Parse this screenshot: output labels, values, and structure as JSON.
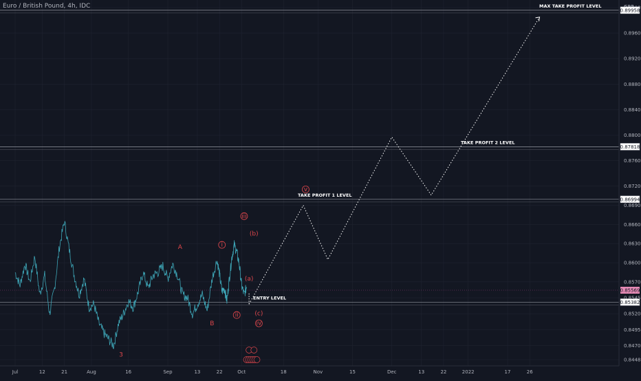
{
  "symbol": {
    "title": "Euro / British Pound, 4h, IDC"
  },
  "currency": "GBP",
  "chart_data": {
    "type": "line",
    "y_ticks": [
      0.8448,
      0.847,
      0.8495,
      0.852,
      0.8545,
      0.857,
      0.86,
      0.863,
      0.866,
      0.869,
      0.872,
      0.876,
      0.88,
      0.884,
      0.888,
      0.892,
      0.896,
      0.9
    ],
    "y_tick_labels": [
      "0.84480",
      "0.84700",
      "0.84950",
      "0.85200",
      "0.85450",
      "0.85700",
      "0.86000",
      "0.86300",
      "0.86600",
      "0.86900",
      "0.87200",
      "0.87600",
      "0.88000",
      "0.88400",
      "0.88800",
      "0.89200",
      "0.89600",
      "0.90000"
    ],
    "x_ticks": [
      {
        "label": "Jul",
        "day": 0
      },
      {
        "label": "12",
        "day": 11
      },
      {
        "label": "21",
        "day": 20
      },
      {
        "label": "Aug",
        "day": 31
      },
      {
        "label": "16",
        "day": 46
      },
      {
        "label": "Sep",
        "day": 62
      },
      {
        "label": "13",
        "day": 74
      },
      {
        "label": "22",
        "day": 83
      },
      {
        "label": "Oct",
        "day": 92
      },
      {
        "label": "18",
        "day": 109
      },
      {
        "label": "Nov",
        "day": 123
      },
      {
        "label": "15",
        "day": 137
      },
      {
        "label": "Dec",
        "day": 153
      },
      {
        "label": "13",
        "day": 165
      },
      {
        "label": "22",
        "day": 174
      },
      {
        "label": "2022",
        "day": 184
      },
      {
        "label": "17",
        "day": 200
      },
      {
        "label": "26",
        "day": 209
      }
    ],
    "series_price": [
      [
        0,
        0.8585
      ],
      [
        2,
        0.8565
      ],
      [
        4,
        0.8598
      ],
      [
        6,
        0.857
      ],
      [
        8,
        0.861
      ],
      [
        10,
        0.855
      ],
      [
        12,
        0.858
      ],
      [
        14,
        0.852
      ],
      [
        16,
        0.856
      ],
      [
        18,
        0.8625
      ],
      [
        20,
        0.8665
      ],
      [
        22,
        0.862
      ],
      [
        24,
        0.858
      ],
      [
        26,
        0.855
      ],
      [
        28,
        0.8575
      ],
      [
        30,
        0.853
      ],
      [
        32,
        0.8535
      ],
      [
        34,
        0.8505
      ],
      [
        36,
        0.849
      ],
      [
        38,
        0.848
      ],
      [
        40,
        0.847
      ],
      [
        42,
        0.8505
      ],
      [
        44,
        0.852
      ],
      [
        46,
        0.854
      ],
      [
        48,
        0.853
      ],
      [
        50,
        0.8555
      ],
      [
        52,
        0.8585
      ],
      [
        54,
        0.856
      ],
      [
        56,
        0.858
      ],
      [
        58,
        0.8585
      ],
      [
        60,
        0.8595
      ],
      [
        62,
        0.8575
      ],
      [
        64,
        0.8598
      ],
      [
        66,
        0.858
      ],
      [
        68,
        0.855
      ],
      [
        70,
        0.8545
      ],
      [
        72,
        0.852
      ],
      [
        74,
        0.8535
      ],
      [
        76,
        0.855
      ],
      [
        78,
        0.8525
      ],
      [
        80,
        0.8575
      ],
      [
        82,
        0.8605
      ],
      [
        83,
        0.8582
      ],
      [
        84,
        0.8555
      ],
      [
        85,
        0.856
      ],
      [
        86,
        0.854
      ],
      [
        87,
        0.8575
      ],
      [
        88,
        0.8608
      ],
      [
        89,
        0.8628
      ],
      [
        90,
        0.8617
      ],
      [
        91,
        0.8598
      ],
      [
        92,
        0.8564
      ],
      [
        93,
        0.855
      ],
      [
        94,
        0.8562
      ]
    ],
    "projection": [
      [
        95,
        0.8535
      ],
      [
        117,
        0.869
      ],
      [
        127,
        0.8605
      ],
      [
        153,
        0.8797
      ],
      [
        169,
        0.8706
      ],
      [
        213,
        0.8985
      ]
    ],
    "levels": [
      {
        "name": "MAX TAKE PROFIT LEVEL",
        "price": 0.89958,
        "label": "0.89958"
      },
      {
        "name": "TAKE PROFIT 2 LEVEL",
        "price": 0.87818,
        "label": "0.87818"
      },
      {
        "name": "TAKE PROFIT 1 LEVEL",
        "price": 0.86994,
        "label": "0.86994"
      },
      {
        "name": "ENTRY LEVEL",
        "price": 0.85382,
        "label": "0.85382"
      }
    ],
    "last_price": {
      "price": 0.85569,
      "label": "0.85569"
    },
    "waves": [
      {
        "text": "A",
        "day": 67,
        "price": 0.8625,
        "style": "plain"
      },
      {
        "text": "B",
        "day": 80,
        "price": 0.8505,
        "style": "plain"
      },
      {
        "text": "3",
        "day": 43,
        "price": 0.8456,
        "style": "plain"
      },
      {
        "text": "i",
        "day": 84,
        "price": 0.8628,
        "style": "circle"
      },
      {
        "text": "ii",
        "day": 90,
        "price": 0.8518,
        "style": "circle"
      },
      {
        "text": "iii",
        "day": 93,
        "price": 0.8673,
        "style": "circle"
      },
      {
        "text": "(b)",
        "day": 97,
        "price": 0.8646,
        "style": "plain"
      },
      {
        "text": "(a)",
        "day": 95,
        "price": 0.8575,
        "style": "plain"
      },
      {
        "text": "(c)",
        "day": 99,
        "price": 0.8521,
        "style": "plain"
      },
      {
        "text": "iv",
        "day": 99,
        "price": 0.8505,
        "style": "circle"
      },
      {
        "text": "v",
        "day": 118,
        "price": 0.8715,
        "style": "circle"
      }
    ]
  },
  "colors": {
    "background": "#131722",
    "price_line": "#3ea7b8",
    "wave": "#e0474c",
    "level_line": "#9598a1",
    "projection": "#ffffff",
    "last_price_bg": "#e58ab5",
    "grid": "#1f2330"
  }
}
